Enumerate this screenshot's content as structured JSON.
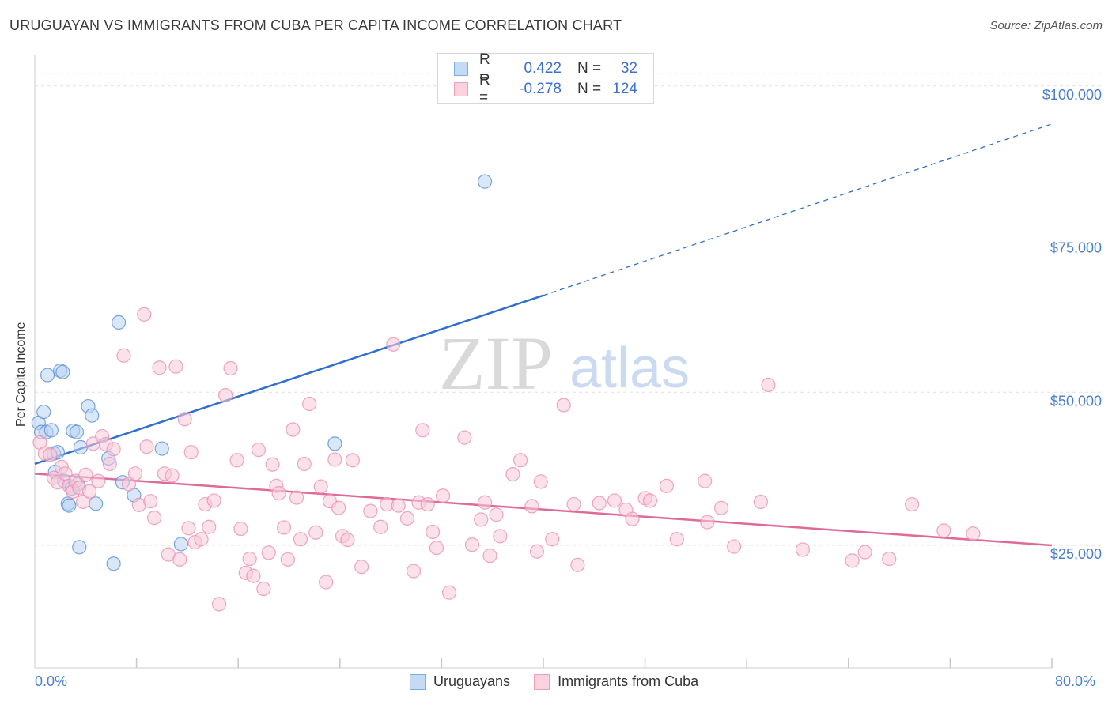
{
  "title": "URUGUAYAN VS IMMIGRANTS FROM CUBA PER CAPITA INCOME CORRELATION CHART",
  "source": "Source: ZipAtlas.com",
  "watermark": {
    "zip": "ZIP",
    "atlas": "atlas"
  },
  "legend_stats": [
    {
      "r_label": "R =",
      "r_value": "0.422",
      "n_label": "N =",
      "n_value": "32",
      "color": "#7aaee8",
      "fill": "#c5dbf5"
    },
    {
      "r_label": "R =",
      "r_value": "-0.278",
      "n_label": "N =",
      "n_value": "124",
      "color": "#f0a0bb",
      "fill": "#fbd3df"
    }
  ],
  "chart_data": {
    "type": "scatter",
    "title": "URUGUAYAN VS IMMIGRANTS FROM CUBA PER CAPITA INCOME CORRELATION CHART",
    "xlabel": "",
    "ylabel": "Per Capita Income",
    "xlim": [
      0,
      80
    ],
    "ylim": [
      5000,
      105000
    ],
    "x_tick_labels": [
      "0.0%",
      "80.0%"
    ],
    "y_ticks": [
      25000,
      50000,
      75000,
      100000
    ],
    "y_tick_labels": [
      "$25,000",
      "$50,000",
      "$75,000",
      "$100,000"
    ],
    "grid": true,
    "legend_position": "bottom",
    "series": [
      {
        "name": "Uruguayans",
        "color": "#5a8fd8",
        "fill": "#b9d3f2",
        "trend": {
          "x": [
            0,
            40
          ],
          "y": [
            38300,
            65800
          ],
          "dashed_to_x": 80,
          "dashed_to_y": 93800,
          "color": "#2f6fcf"
        },
        "points": [
          [
            0.3,
            45000
          ],
          [
            0.5,
            43500
          ],
          [
            0.7,
            46800
          ],
          [
            0.9,
            43500
          ],
          [
            1.0,
            52800
          ],
          [
            1.3,
            43800
          ],
          [
            1.5,
            40000
          ],
          [
            1.6,
            37000
          ],
          [
            1.8,
            40200
          ],
          [
            2.0,
            53500
          ],
          [
            2.2,
            53300
          ],
          [
            2.3,
            35500
          ],
          [
            2.6,
            31800
          ],
          [
            2.7,
            31500
          ],
          [
            2.9,
            34300
          ],
          [
            3.0,
            43700
          ],
          [
            3.3,
            43500
          ],
          [
            3.4,
            35000
          ],
          [
            3.5,
            24700
          ],
          [
            3.6,
            41000
          ],
          [
            4.2,
            47700
          ],
          [
            4.5,
            46200
          ],
          [
            4.8,
            31800
          ],
          [
            5.8,
            39200
          ],
          [
            6.2,
            22000
          ],
          [
            6.6,
            61400
          ],
          [
            6.9,
            35300
          ],
          [
            7.8,
            33200
          ],
          [
            10.0,
            40800
          ],
          [
            11.5,
            25200
          ],
          [
            23.6,
            41600
          ],
          [
            35.4,
            84400
          ]
        ]
      },
      {
        "name": "Immigrants from Cuba",
        "color": "#ec8fb0",
        "fill": "#f8c9d8",
        "trend": {
          "x": [
            0,
            80
          ],
          "y": [
            36700,
            25000
          ],
          "color": "#e06a97"
        },
        "points": [
          [
            0.4,
            41800
          ],
          [
            0.8,
            40000
          ],
          [
            1.2,
            39800
          ],
          [
            1.5,
            36000
          ],
          [
            1.8,
            35300
          ],
          [
            2.1,
            37800
          ],
          [
            2.4,
            36700
          ],
          [
            2.7,
            34700
          ],
          [
            3.0,
            33800
          ],
          [
            3.2,
            35500
          ],
          [
            3.5,
            34400
          ],
          [
            3.8,
            32100
          ],
          [
            4.0,
            36500
          ],
          [
            4.3,
            33800
          ],
          [
            4.6,
            41600
          ],
          [
            5.0,
            35500
          ],
          [
            5.3,
            42800
          ],
          [
            5.6,
            41500
          ],
          [
            5.9,
            38300
          ],
          [
            6.2,
            40700
          ],
          [
            7.0,
            56000
          ],
          [
            7.4,
            35000
          ],
          [
            7.9,
            36700
          ],
          [
            8.2,
            31600
          ],
          [
            8.6,
            62700
          ],
          [
            8.8,
            41100
          ],
          [
            9.1,
            32200
          ],
          [
            9.4,
            29500
          ],
          [
            9.8,
            54000
          ],
          [
            10.2,
            36700
          ],
          [
            10.5,
            23500
          ],
          [
            10.8,
            36400
          ],
          [
            11.1,
            54200
          ],
          [
            11.4,
            22700
          ],
          [
            11.8,
            45600
          ],
          [
            12.1,
            27800
          ],
          [
            12.3,
            40200
          ],
          [
            12.6,
            25500
          ],
          [
            13.1,
            26000
          ],
          [
            13.4,
            31700
          ],
          [
            13.7,
            28000
          ],
          [
            14.1,
            32300
          ],
          [
            14.5,
            15400
          ],
          [
            15.0,
            49500
          ],
          [
            15.4,
            53900
          ],
          [
            15.9,
            38900
          ],
          [
            16.2,
            27700
          ],
          [
            16.6,
            20500
          ],
          [
            16.9,
            22800
          ],
          [
            17.2,
            20000
          ],
          [
            17.6,
            40600
          ],
          [
            18.0,
            17900
          ],
          [
            18.4,
            23800
          ],
          [
            18.7,
            38200
          ],
          [
            19.0,
            34700
          ],
          [
            19.2,
            33500
          ],
          [
            19.6,
            27900
          ],
          [
            19.9,
            22700
          ],
          [
            20.3,
            43900
          ],
          [
            20.6,
            32800
          ],
          [
            20.9,
            26000
          ],
          [
            21.2,
            38300
          ],
          [
            21.6,
            48100
          ],
          [
            22.1,
            27100
          ],
          [
            22.5,
            34600
          ],
          [
            22.9,
            19000
          ],
          [
            23.2,
            32200
          ],
          [
            23.6,
            39000
          ],
          [
            23.9,
            31100
          ],
          [
            24.2,
            26500
          ],
          [
            24.6,
            25900
          ],
          [
            25.0,
            38900
          ],
          [
            25.7,
            21500
          ],
          [
            26.4,
            30600
          ],
          [
            27.2,
            28000
          ],
          [
            27.7,
            31700
          ],
          [
            28.2,
            57800
          ],
          [
            28.6,
            31500
          ],
          [
            29.3,
            29400
          ],
          [
            29.8,
            20800
          ],
          [
            30.2,
            32000
          ],
          [
            30.5,
            43800
          ],
          [
            30.9,
            31700
          ],
          [
            31.3,
            27200
          ],
          [
            31.6,
            24600
          ],
          [
            32.1,
            33100
          ],
          [
            32.6,
            17300
          ],
          [
            33.8,
            42600
          ],
          [
            34.4,
            25100
          ],
          [
            35.1,
            29200
          ],
          [
            35.4,
            32000
          ],
          [
            35.8,
            23300
          ],
          [
            36.3,
            30000
          ],
          [
            36.6,
            26500
          ],
          [
            37.6,
            36600
          ],
          [
            38.2,
            38900
          ],
          [
            39.1,
            31400
          ],
          [
            39.5,
            24000
          ],
          [
            39.8,
            35400
          ],
          [
            40.7,
            26000
          ],
          [
            41.6,
            47900
          ],
          [
            42.4,
            31700
          ],
          [
            42.7,
            21800
          ],
          [
            44.4,
            31900
          ],
          [
            45.6,
            32300
          ],
          [
            46.5,
            30800
          ],
          [
            47.0,
            29300
          ],
          [
            48.0,
            32700
          ],
          [
            48.4,
            32300
          ],
          [
            49.7,
            34700
          ],
          [
            50.5,
            26000
          ],
          [
            52.7,
            35500
          ],
          [
            52.9,
            28800
          ],
          [
            54.0,
            31100
          ],
          [
            55.0,
            24800
          ],
          [
            57.1,
            32100
          ],
          [
            57.7,
            51200
          ],
          [
            60.4,
            24300
          ],
          [
            64.3,
            22500
          ],
          [
            65.3,
            23900
          ],
          [
            67.2,
            22800
          ],
          [
            69.0,
            31700
          ],
          [
            71.5,
            27400
          ],
          [
            73.8,
            26900
          ]
        ]
      }
    ]
  }
}
